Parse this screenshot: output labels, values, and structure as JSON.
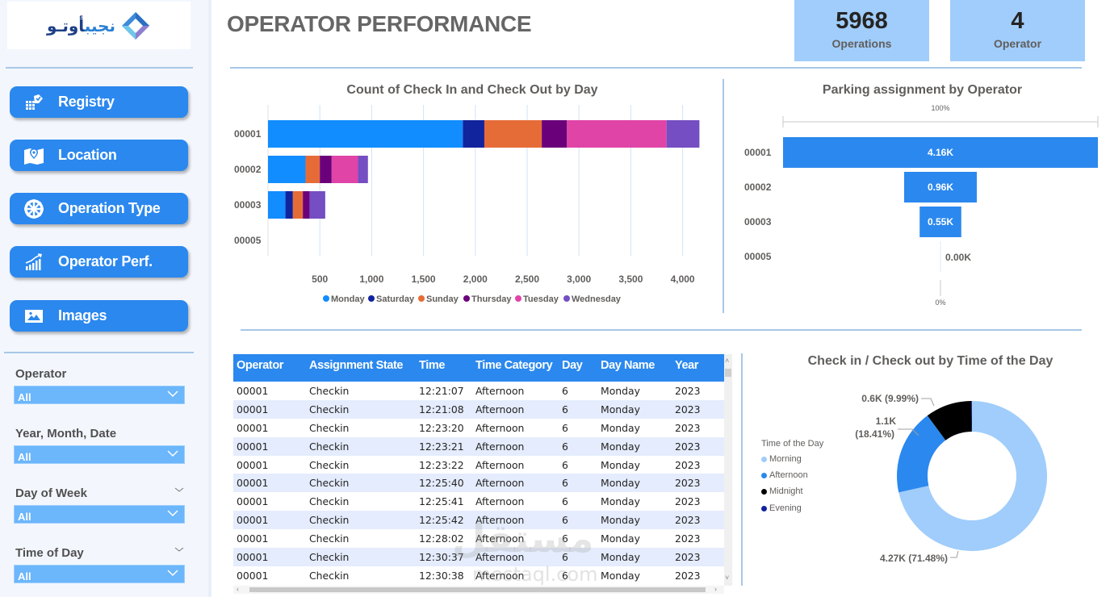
{
  "logo": {
    "text_blue": "نجيب",
    "text_dark": "أوتـو"
  },
  "nav": [
    {
      "label": "Registry",
      "icon": "registry-icon"
    },
    {
      "label": "Location",
      "icon": "map-pin-icon"
    },
    {
      "label": "Operation Type",
      "icon": "wheel-icon"
    },
    {
      "label": "Operator Perf.",
      "icon": "bar-growth-icon"
    },
    {
      "label": "Images",
      "icon": "image-icon"
    }
  ],
  "slicers": [
    {
      "title": "Operator",
      "value": "All"
    },
    {
      "title": "Year, Month, Date",
      "value": "All"
    },
    {
      "title": "Day of Week",
      "value": "All"
    },
    {
      "title": "Time of Day",
      "value": "All"
    }
  ],
  "header": {
    "title": "OPERATOR PERFORMANCE"
  },
  "kpis": [
    {
      "value": "5968",
      "label": "Operations"
    },
    {
      "value": "4",
      "label": "Operator"
    }
  ],
  "table": {
    "columns": [
      "Operator",
      "Assignment State",
      "Time",
      "Time Category",
      "Day",
      "Day Name",
      "Year"
    ],
    "rows": [
      [
        "00001",
        "Checkin",
        "12:21:07",
        "Afternoon",
        "6",
        "Monday",
        "2023"
      ],
      [
        "00001",
        "Checkin",
        "12:21:08",
        "Afternoon",
        "6",
        "Monday",
        "2023"
      ],
      [
        "00001",
        "Checkin",
        "12:23:20",
        "Afternoon",
        "6",
        "Monday",
        "2023"
      ],
      [
        "00001",
        "Checkin",
        "12:23:21",
        "Afternoon",
        "6",
        "Monday",
        "2023"
      ],
      [
        "00001",
        "Checkin",
        "12:23:22",
        "Afternoon",
        "6",
        "Monday",
        "2023"
      ],
      [
        "00001",
        "Checkin",
        "12:25:40",
        "Afternoon",
        "6",
        "Monday",
        "2023"
      ],
      [
        "00001",
        "Checkin",
        "12:25:41",
        "Afternoon",
        "6",
        "Monday",
        "2023"
      ],
      [
        "00001",
        "Checkin",
        "12:25:42",
        "Afternoon",
        "6",
        "Monday",
        "2023"
      ],
      [
        "00001",
        "Checkin",
        "12:28:02",
        "Afternoon",
        "6",
        "Monday",
        "2023"
      ],
      [
        "00001",
        "Checkin",
        "12:30:37",
        "Afternoon",
        "6",
        "Monday",
        "2023"
      ],
      [
        "00001",
        "Checkin",
        "12:30:38",
        "Afternoon",
        "6",
        "Monday",
        "2023"
      ]
    ]
  },
  "watermark": {
    "arabic": "مستقل",
    "latin": "mostaql.com"
  },
  "chart_data": [
    {
      "type": "bar",
      "orientation": "horizontal",
      "stacked": true,
      "title": "Count of Check In and Check Out by Day",
      "categories": [
        "00001",
        "00002",
        "00003",
        "00005"
      ],
      "xlim": [
        0,
        4200
      ],
      "xticks": [
        500,
        1000,
        1500,
        2000,
        2500,
        3000,
        3500,
        4000
      ],
      "xtick_labels": [
        "500",
        "1,000",
        "1,500",
        "2,000",
        "2,500",
        "3,000",
        "3,500",
        "4,000"
      ],
      "grid": true,
      "legend_position": "bottom",
      "series": [
        {
          "name": "Monday",
          "color": "#118dff",
          "values": [
            1880,
            362,
            168,
            0
          ]
        },
        {
          "name": "Saturday",
          "color": "#12239e",
          "values": [
            207,
            0,
            72,
            0
          ]
        },
        {
          "name": "Sunday",
          "color": "#e66c37",
          "values": [
            554,
            138,
            96,
            0
          ]
        },
        {
          "name": "Thursday",
          "color": "#6b007b",
          "values": [
            243,
            114,
            66,
            0
          ]
        },
        {
          "name": "Tuesday",
          "color": "#e044a7",
          "values": [
            961,
            254,
            0,
            0
          ]
        },
        {
          "name": "Wednesday",
          "color": "#744ec2",
          "values": [
            317,
            96,
            150,
            0
          ]
        }
      ]
    },
    {
      "type": "funnel",
      "title": "Parking assignment by Operator",
      "categories": [
        "00001",
        "00002",
        "00003",
        "00005"
      ],
      "values": [
        4160,
        960,
        550,
        0
      ],
      "labels": [
        "4.16K",
        "0.96K",
        "0.55K",
        "0.00K"
      ],
      "top_label": "100%",
      "bottom_label": "0%",
      "color": "#2b88ee"
    },
    {
      "type": "pie",
      "donut": true,
      "title": "Check in / Check out by Time of the Day",
      "legend_title": "Time of the Day",
      "legend_position": "left",
      "slices": [
        {
          "name": "Morning",
          "value": 4270,
          "percent": 71.48,
          "label": "4.27K (71.48%)",
          "color": "#a0cdfb"
        },
        {
          "name": "Afternoon",
          "value": 1100,
          "percent": 18.41,
          "label_line1": "1.1K",
          "label_line2": "(18.41%)",
          "color": "#2b88ee"
        },
        {
          "name": "Midnight",
          "value": 600,
          "percent": 9.99,
          "label": "0.6K (9.99%)",
          "color": "#000000"
        },
        {
          "name": "Evening",
          "value": 7,
          "percent": 0.12,
          "label": "",
          "color": "#12239e"
        }
      ]
    }
  ]
}
